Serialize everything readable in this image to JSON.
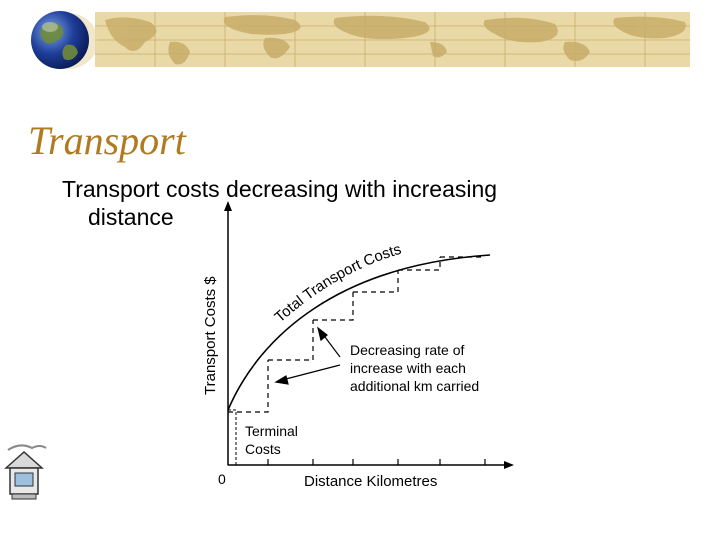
{
  "slide": {
    "title": "Transport",
    "subtitle_line1": "Transport costs decreasing with increasing",
    "subtitle_line2": "distance",
    "icons": [
      "globe-icon",
      "world-map-banner",
      "house-computer-icon"
    ],
    "colors": {
      "title": "#b07a1e",
      "banner": "#e9d9a6",
      "map": "#c8ad6a"
    }
  },
  "chart_data": {
    "type": "line",
    "title": "",
    "xlabel": "Distance Kilometres",
    "ylabel": "Transport Costs $",
    "x_origin_label": "0",
    "curve_label": "Total Transport Costs",
    "annotations": [
      {
        "text": [
          "Decreasing rate of",
          "increase with each",
          "additional km carried"
        ]
      },
      {
        "text": [
          "Terminal",
          "Costs"
        ]
      }
    ],
    "grid": false,
    "legend": "none"
  }
}
